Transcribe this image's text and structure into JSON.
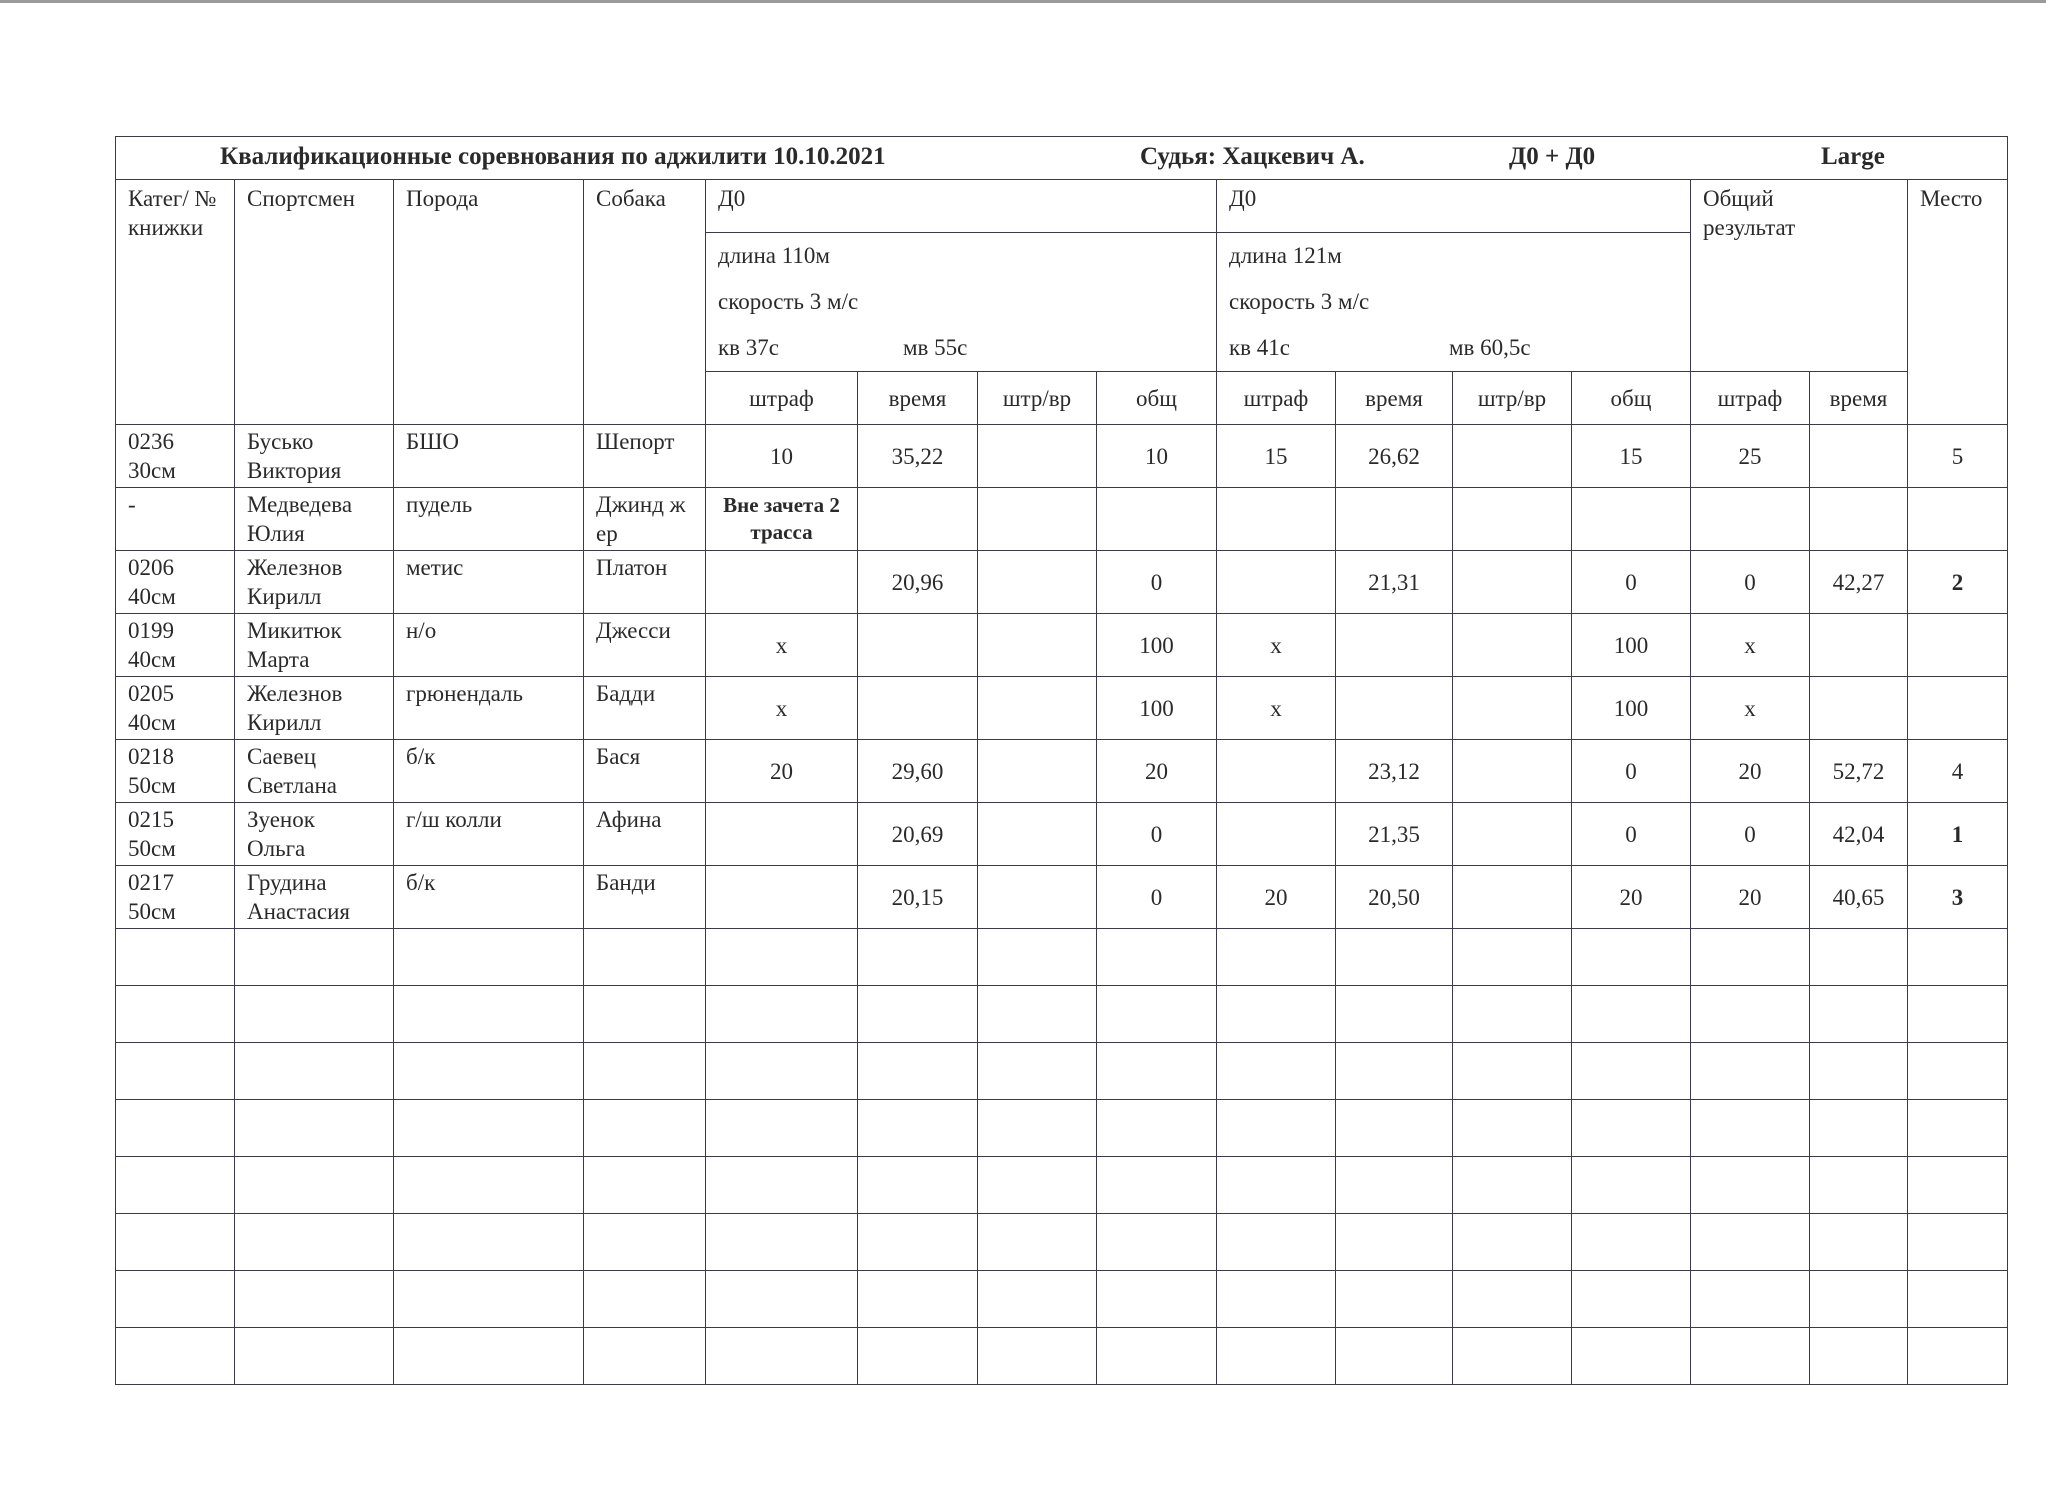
{
  "header": {
    "title": "Квалификационные соревнования по аджилити 10.10.2021",
    "judge": "Судья: Хацкевич А.",
    "format": "Д0 + Д0",
    "class": "Large"
  },
  "columns": {
    "category": "Катег/ № книжки",
    "athlete": "Спортсмен",
    "breed": "Порода",
    "dog": "Собака",
    "total": "Общий результат",
    "place": "Место"
  },
  "runs": [
    {
      "name": "Д0",
      "length": "длина 110м",
      "speed": "скорость 3 м/с",
      "kv": "кв  37с",
      "mv": "мв 55с"
    },
    {
      "name": "Д0",
      "length": "длина 121м",
      "speed": "скорость 3 м/с",
      "kv": "кв  41с",
      "mv": "мв 60,5с"
    }
  ],
  "subcolumns": [
    "штраф",
    "время",
    "штр/вр",
    "общ",
    "штраф",
    "время",
    "штр/вр",
    "общ",
    "штраф",
    "время"
  ],
  "rows": [
    {
      "cat": [
        "0236",
        "30см"
      ],
      "athlete": [
        "Бусько",
        "Виктория"
      ],
      "breed": "БШО",
      "dog": "Шепорт",
      "cells": [
        "10",
        "35,22",
        "",
        "10",
        "15",
        "26,62",
        "",
        "15",
        "25",
        ""
      ],
      "place": "5",
      "bold": false
    },
    {
      "cat": [
        "-",
        ""
      ],
      "athlete": [
        "Медведева",
        "Юлия"
      ],
      "breed": "пудель",
      "dog": "Джинд жер",
      "note": "Вне зачета 2 трасса",
      "cells": [
        "",
        "",
        "",
        "",
        "",
        "",
        "",
        "",
        "",
        ""
      ],
      "place": "",
      "bold": false
    },
    {
      "cat": [
        "0206",
        "40см"
      ],
      "athlete": [
        "Железнов",
        "Кирилл"
      ],
      "breed": "метис",
      "dog": "Платон",
      "cells": [
        "",
        "20,96",
        "",
        "0",
        "",
        "21,31",
        "",
        "0",
        "0",
        "42,27"
      ],
      "place": "2",
      "bold": true
    },
    {
      "cat": [
        "0199",
        "40см"
      ],
      "athlete": [
        "Микитюк",
        "Марта"
      ],
      "breed": "н/о",
      "dog": "Джесси",
      "cells": [
        "x",
        "",
        "",
        "100",
        "x",
        "",
        "",
        "100",
        "x",
        ""
      ],
      "place": "",
      "bold": false
    },
    {
      "cat": [
        "0205",
        "40см"
      ],
      "athlete": [
        "Железнов",
        "Кирилл"
      ],
      "breed": "грюнендаль",
      "dog": "Бадди",
      "cells": [
        "x",
        "",
        "",
        "100",
        "x",
        "",
        "",
        "100",
        "x",
        ""
      ],
      "place": "",
      "bold": false
    },
    {
      "cat": [
        "0218",
        "50см"
      ],
      "athlete": [
        "Саевец",
        "Светлана"
      ],
      "breed": "б/к",
      "dog": "Бася",
      "cells": [
        "20",
        "29,60",
        "",
        "20",
        "",
        "23,12",
        "",
        "0",
        "20",
        "52,72"
      ],
      "place": "4",
      "bold": false
    },
    {
      "cat": [
        "0215",
        "50см"
      ],
      "athlete": [
        "Зуенок",
        "Ольга"
      ],
      "breed": "г/ш колли",
      "dog": "Афина",
      "cells": [
        "",
        "20,69",
        "",
        "0",
        "",
        "21,35",
        "",
        "0",
        "0",
        "42,04"
      ],
      "place": "1",
      "bold": true
    },
    {
      "cat": [
        "0217",
        "50см"
      ],
      "athlete": [
        "Грудина",
        "Анастасия"
      ],
      "breed": "б/к",
      "dog": "Банди",
      "cells": [
        "",
        "20,15",
        "",
        "0",
        "20",
        "20,50",
        "",
        "20",
        "20",
        "40,65"
      ],
      "place": "3",
      "bold": true
    }
  ]
}
